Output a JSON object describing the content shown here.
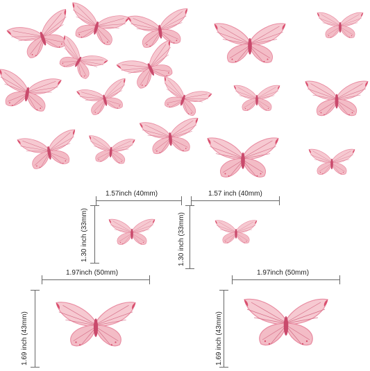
{
  "colors": {
    "wing_fill": "#f6c9d1",
    "wing_edge": "#e88aa0",
    "vein": "#d46b85",
    "body": "#c94a6c",
    "tip": "#d9506f",
    "rule": "#666666"
  },
  "dimensions": {
    "small_left_width": "1.57inch  (40mm)",
    "small_left_height": "1.30 inch (33mm)",
    "small_right_width": "1.57 inch  (40mm)",
    "small_right_height": "1.30 inch (33mm)",
    "large_left_width": "1.97inch  (50mm)",
    "large_left_height": "1.69 inch  (43mm)",
    "large_right_width": "1.97inch  (50mm)",
    "large_right_height": "1.69 inch  (43mm)"
  }
}
